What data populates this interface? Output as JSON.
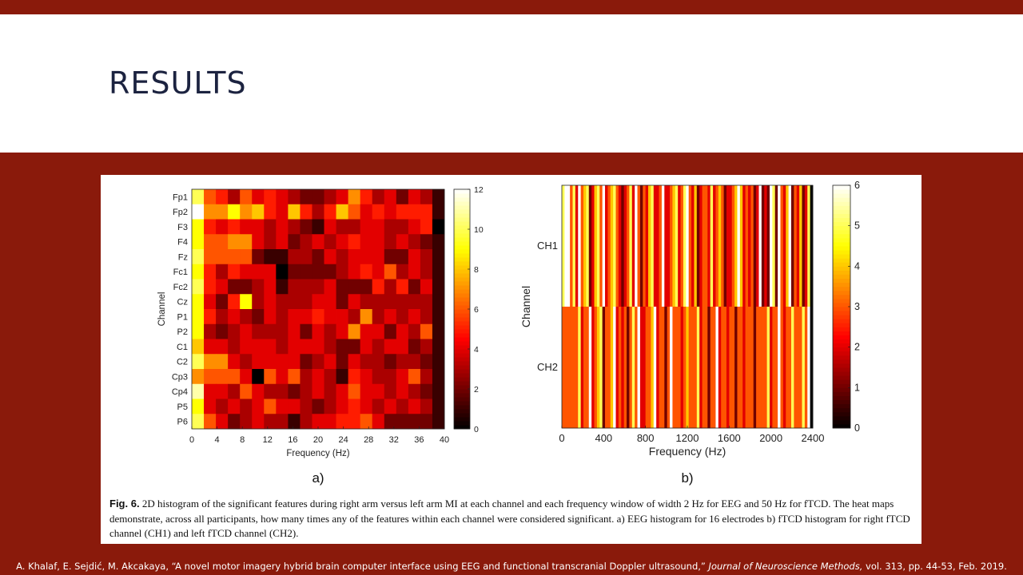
{
  "slide": {
    "title": "RESULTS",
    "caption_label": "Fig. 6.",
    "caption_text": "2D histogram of the significant features during right arm versus left arm MI at each channel and each frequency window of width 2 Hz for EEG and 50 Hz for fTCD. The heat maps demonstrate, across all participants, how many times any of the features within each channel were considered significant. a) EEG histogram for 16 electrodes b) fTCD histogram for right fTCD channel (CH1) and left fTCD channel (CH2).",
    "citation_main": "A. Khalaf, E. Sejdić, M. Akcakaya, “A novel motor imagery hybrid brain computer interface using EEG and functional transcranial Doppler ultrasound,”",
    "citation_journal": "Journal of Neuroscience Methods,",
    "citation_tail": "vol. 313, pp. 44-53, Feb. 2019."
  },
  "colors": {
    "slide_band": "#8a1a0b",
    "title_color": "#1c2340"
  },
  "chart_data": [
    {
      "type": "heatmap",
      "panel_label": "a)",
      "xlabel": "Frequency (Hz)",
      "ylabel": "Channel",
      "y_categories": [
        "Fp1",
        "Fp2",
        "F3",
        "F4",
        "Fz",
        "Fc1",
        "Fc2",
        "Cz",
        "P1",
        "P2",
        "C1",
        "C2",
        "Cp3",
        "Cp4",
        "P5",
        "P6"
      ],
      "x_ticks": [
        0,
        4,
        8,
        12,
        16,
        20,
        24,
        28,
        32,
        36,
        40
      ],
      "xlim": [
        0,
        40
      ],
      "colorbar_ticks": [
        0,
        2,
        4,
        6,
        8,
        10,
        12
      ],
      "zlim": [
        0,
        12
      ],
      "colormap": "hot",
      "values": [
        [
          10,
          6,
          5,
          3,
          6,
          4,
          5,
          4,
          3,
          2,
          2,
          3,
          4,
          7,
          5,
          3,
          4,
          2,
          4,
          3,
          1
        ],
        [
          12,
          7,
          7,
          9,
          7,
          8,
          5,
          4,
          8,
          5,
          3,
          5,
          8,
          6,
          4,
          5,
          4,
          5,
          5,
          5,
          1
        ],
        [
          9,
          5,
          4,
          5,
          4,
          4,
          3,
          4,
          3,
          2,
          1,
          4,
          3,
          3,
          4,
          4,
          3,
          3,
          4,
          5,
          0
        ],
        [
          9,
          6,
          6,
          7,
          7,
          4,
          3,
          4,
          2,
          3,
          4,
          3,
          4,
          5,
          4,
          4,
          3,
          4,
          3,
          2,
          1
        ],
        [
          10,
          6,
          6,
          6,
          6,
          2,
          1,
          1,
          3,
          3,
          2,
          4,
          3,
          4,
          4,
          4,
          2,
          2,
          4,
          3,
          1
        ],
        [
          9,
          5,
          3,
          5,
          4,
          4,
          4,
          0,
          2,
          2,
          2,
          2,
          3,
          4,
          5,
          4,
          6,
          3,
          4,
          3,
          1
        ],
        [
          10,
          5,
          4,
          2,
          2,
          3,
          4,
          1,
          3,
          3,
          3,
          4,
          2,
          2,
          2,
          5,
          3,
          5,
          2,
          4,
          1
        ],
        [
          9,
          4,
          2,
          5,
          9,
          3,
          4,
          3,
          3,
          3,
          4,
          4,
          2,
          4,
          3,
          3,
          3,
          3,
          3,
          3,
          1
        ],
        [
          9,
          5,
          3,
          4,
          3,
          2,
          4,
          3,
          4,
          4,
          5,
          4,
          4,
          3,
          7,
          3,
          4,
          3,
          4,
          3,
          1
        ],
        [
          9,
          3,
          2,
          3,
          4,
          3,
          3,
          3,
          4,
          2,
          4,
          3,
          4,
          7,
          4,
          4,
          2,
          4,
          3,
          6,
          1
        ],
        [
          8,
          4,
          4,
          3,
          4,
          4,
          4,
          3,
          4,
          4,
          4,
          3,
          2,
          2,
          4,
          3,
          4,
          4,
          2,
          3,
          1
        ],
        [
          10,
          7,
          7,
          4,
          3,
          4,
          4,
          4,
          4,
          2,
          3,
          4,
          2,
          4,
          3,
          3,
          2,
          3,
          3,
          2,
          1
        ],
        [
          7,
          6,
          6,
          6,
          4,
          0,
          6,
          4,
          6,
          3,
          4,
          3,
          1,
          5,
          4,
          3,
          3,
          4,
          6,
          3,
          1
        ],
        [
          11,
          4,
          4,
          3,
          6,
          4,
          3,
          3,
          2,
          3,
          4,
          3,
          4,
          6,
          4,
          4,
          3,
          4,
          3,
          2,
          1
        ],
        [
          9,
          4,
          3,
          4,
          3,
          4,
          6,
          4,
          4,
          3,
          2,
          3,
          4,
          5,
          4,
          3,
          4,
          3,
          4,
          3,
          1
        ],
        [
          10,
          6,
          4,
          2,
          3,
          4,
          3,
          3,
          1,
          3,
          4,
          4,
          5,
          5,
          6,
          4,
          2,
          2,
          2,
          2,
          1
        ]
      ]
    },
    {
      "type": "heatmap",
      "panel_label": "b)",
      "xlabel": "Frequency (Hz)",
      "ylabel": "Channel",
      "y_categories": [
        "CH1",
        "CH2"
      ],
      "x_ticks": [
        0,
        400,
        800,
        1200,
        1600,
        2000,
        2400
      ],
      "xlim": [
        0,
        2400
      ],
      "colorbar_ticks": [
        0,
        1,
        2,
        3,
        4,
        5,
        6
      ],
      "zlim": [
        0,
        6
      ],
      "colormap": "hot",
      "values": [
        [
          5,
          6,
          6,
          3,
          5,
          2,
          6,
          3,
          4,
          5,
          1,
          2,
          4,
          5,
          3,
          6,
          2,
          3,
          4,
          5,
          3,
          2,
          1,
          2,
          3,
          5,
          2,
          6,
          3,
          1,
          3,
          2,
          4,
          5,
          2,
          2,
          3,
          6,
          2,
          2,
          3,
          4,
          5,
          2,
          3,
          5,
          6,
          3,
          2,
          4,
          1,
          2,
          3,
          3,
          2,
          5,
          2,
          3,
          4,
          3,
          1,
          2,
          2,
          3,
          4,
          6,
          4,
          2,
          3,
          2,
          3,
          1,
          2,
          6,
          1,
          2,
          1,
          6,
          5,
          1,
          6,
          3,
          2,
          4,
          6,
          1,
          3,
          2,
          4,
          1,
          2,
          5,
          0
        ],
        [
          3,
          3,
          3,
          3,
          3,
          3,
          5,
          2,
          3,
          3,
          6,
          2,
          3,
          4,
          5,
          1,
          3,
          3,
          4,
          6,
          2,
          3,
          2,
          3,
          1,
          3,
          5,
          3,
          6,
          2,
          2,
          3,
          3,
          4,
          6,
          2,
          3,
          3,
          1,
          3,
          6,
          3,
          3,
          3,
          2,
          3,
          4,
          3,
          3,
          3,
          5,
          2,
          3,
          3,
          1,
          3,
          3,
          6,
          2,
          3,
          3,
          2,
          3,
          3,
          1,
          3,
          3,
          2,
          3,
          3,
          3,
          1,
          3,
          3,
          3,
          3,
          5,
          2,
          3,
          3,
          6,
          3,
          2,
          3,
          3,
          5,
          3,
          3,
          3,
          5,
          3,
          6,
          0
        ]
      ]
    }
  ]
}
